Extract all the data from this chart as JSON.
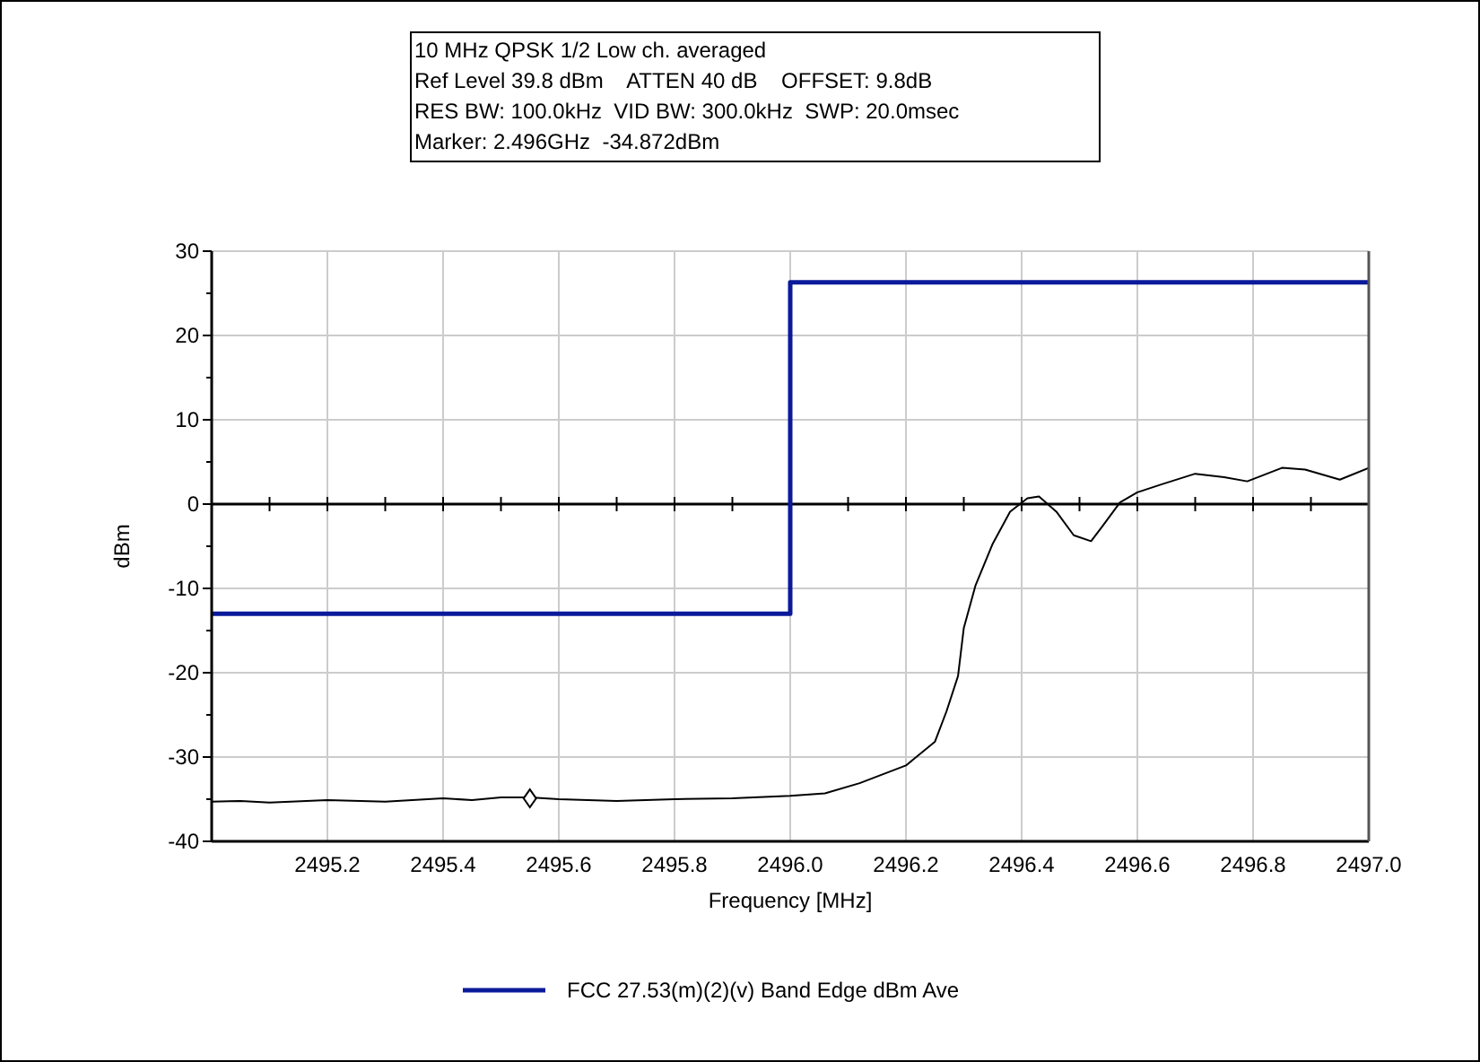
{
  "chart_data": {
    "type": "line",
    "title": "10 MHz QPSK 1/2 Low ch. averaged",
    "annotations": [
      "Ref Level 39.8 dBm    ATTEN 40 dB    OFFSET: 9.8dB",
      "RES BW: 100.0kHz  VID BW: 300.0kHz  SWP: 20.0msec",
      "Marker: 2.496GHz  -34.872dBm"
    ],
    "xlabel": "Frequency [MHz]",
    "ylabel": "dBm",
    "xlim": [
      2495,
      2497
    ],
    "ylim": [
      -40,
      30
    ],
    "xticks": [
      {
        "value": 2495.1,
        "label": null
      },
      {
        "value": 2495.2,
        "label": "2495.2"
      },
      {
        "value": 2495.3,
        "label": null
      },
      {
        "value": 2495.4,
        "label": "2495.4"
      },
      {
        "value": 2495.5,
        "label": null
      },
      {
        "value": 2495.6,
        "label": "2495.6"
      },
      {
        "value": 2495.7,
        "label": null
      },
      {
        "value": 2495.8,
        "label": "2495.8"
      },
      {
        "value": 2495.9,
        "label": null
      },
      {
        "value": 2496,
        "label": "2496.0"
      },
      {
        "value": 2496.1,
        "label": null
      },
      {
        "value": 2496.2,
        "label": "2496.2"
      },
      {
        "value": 2496.3,
        "label": null
      },
      {
        "value": 2496.4,
        "label": "2496.4"
      },
      {
        "value": 2496.5,
        "label": null
      },
      {
        "value": 2496.6,
        "label": "2496.6"
      },
      {
        "value": 2496.7,
        "label": null
      },
      {
        "value": 2496.8,
        "label": "2496.8"
      },
      {
        "value": 2496.9,
        "label": null
      },
      {
        "value": 2497,
        "label": "2497.0"
      }
    ],
    "yticks": [
      -40,
      {
        "value": -35,
        "label": null
      },
      -30,
      {
        "value": -25,
        "label": null
      },
      -20,
      {
        "value": -15,
        "label": null
      },
      -10,
      {
        "value": -5,
        "label": null
      },
      0,
      {
        "value": 5,
        "label": null
      },
      10,
      {
        "value": 15,
        "label": null
      },
      20,
      {
        "value": 25,
        "label": null
      },
      30
    ],
    "grid": true,
    "legend": "bottom",
    "ref_lines": [
      {
        "axis": "y",
        "value": 0,
        "color": "#000000"
      }
    ],
    "series": [
      {
        "name": "FCC 27.53(m)(2)(v) Band Edge dBm Ave",
        "color": "#0a1a9a",
        "x": [
          2495,
          2496,
          2496,
          2497
        ],
        "values": [
          -13,
          -13,
          26.3,
          26.3
        ]
      },
      {
        "color": "#000000",
        "x": [
          2495,
          2495.05,
          2495.1,
          2495.2,
          2495.3,
          2495.4,
          2495.45,
          2495.5,
          2495.55,
          2495.6,
          2495.7,
          2495.8,
          2495.9,
          2496,
          2496.06,
          2496.12,
          2496.2,
          2496.25,
          2496.27,
          2496.29,
          2496.3,
          2496.32,
          2496.35,
          2496.38,
          2496.41,
          2496.43,
          2496.46,
          2496.49,
          2496.52,
          2496.54,
          2496.57,
          2496.6,
          2496.64,
          2496.7,
          2496.75,
          2496.79,
          2496.85,
          2496.89,
          2496.95,
          2497
        ],
        "values": [
          -35.3,
          -35.2,
          -35.4,
          -35.1,
          -35.3,
          -34.9,
          -35.1,
          -34.8,
          -34.8,
          -35.0,
          -35.2,
          -35.0,
          -34.9,
          -34.6,
          -34.3,
          -33.1,
          -31.0,
          -28.2,
          -24.6,
          -20.4,
          -14.7,
          -9.7,
          -4.7,
          -0.9,
          0.7,
          0.9,
          -0.9,
          -3.7,
          -4.4,
          -2.6,
          0.2,
          1.4,
          2.3,
          3.6,
          3.2,
          2.7,
          4.3,
          4.1,
          2.9,
          4.3
        ]
      },
      {
        "type": "scatter",
        "marker": "diamond",
        "color": "#000000",
        "x": [
          2495.55
        ],
        "values": [
          -34.9
        ]
      }
    ]
  }
}
